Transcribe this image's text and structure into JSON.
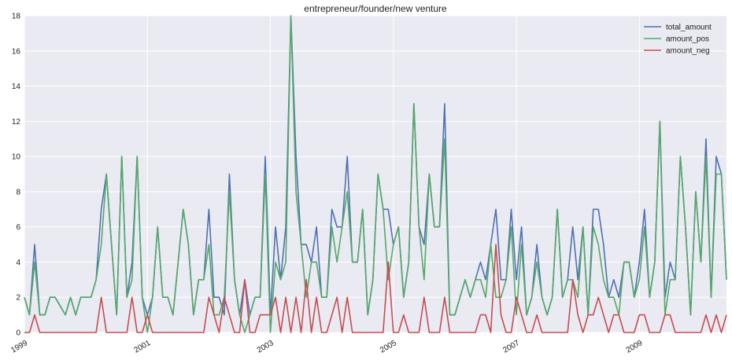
{
  "chart_data": {
    "type": "line",
    "title": "entrepreneur/founder/new venture",
    "xlabel": "",
    "ylabel": "",
    "x_start": "1999-01",
    "x_end": "2010-09",
    "x_ticks": [
      "1999",
      "2001",
      "2003",
      "2005",
      "2007",
      "2009"
    ],
    "ylim": [
      0,
      18
    ],
    "y_ticks": [
      "0",
      "2",
      "4",
      "6",
      "8",
      "10",
      "12",
      "14",
      "16",
      "18"
    ],
    "grid": true,
    "legend_position": "top-right",
    "series": [
      {
        "name": "total_amount",
        "color": "#4c72b0",
        "values": [
          2,
          1,
          5,
          1,
          1,
          2,
          2,
          1.5,
          1,
          2,
          1,
          2,
          2,
          2,
          3,
          7,
          9,
          5,
          1,
          10,
          2,
          4,
          10,
          2,
          1,
          2,
          6,
          2,
          2,
          1,
          4,
          7,
          5,
          1,
          3,
          3,
          7,
          2,
          2,
          1,
          9,
          3,
          1,
          3,
          1,
          2,
          2,
          10,
          1,
          6,
          3,
          6,
          18,
          10,
          5,
          5,
          4,
          6,
          2,
          2,
          7,
          6,
          6,
          10,
          4,
          4,
          7,
          1,
          3,
          9,
          7,
          7,
          5,
          6,
          2,
          4,
          13,
          6,
          5,
          9,
          6,
          6,
          13,
          1,
          1,
          2,
          3,
          2,
          3,
          4,
          3,
          5,
          7,
          3,
          3,
          7,
          3,
          6,
          1,
          2,
          5,
          2,
          1,
          2,
          7,
          2,
          3,
          6,
          3,
          6,
          1,
          7,
          7,
          5,
          2,
          3,
          2,
          4,
          4,
          2,
          4,
          7,
          2,
          4,
          12,
          2,
          4,
          3,
          10,
          6,
          1,
          8,
          4,
          11,
          2,
          10,
          9,
          3
        ]
      },
      {
        "name": "amount_pos",
        "color": "#55a868",
        "values": [
          2,
          1,
          4,
          1,
          1,
          2,
          2,
          1.5,
          1,
          2,
          1,
          2,
          2,
          2,
          3,
          5,
          9,
          5,
          1,
          10,
          2,
          3,
          10,
          2,
          0,
          2,
          6,
          2,
          2,
          1,
          4,
          7,
          5,
          1,
          3,
          3,
          5,
          1,
          1,
          2,
          8,
          3,
          1,
          0,
          1,
          2,
          2,
          9,
          0,
          4,
          3,
          4,
          18,
          8,
          5,
          2,
          4,
          4,
          2,
          2,
          6,
          4,
          6,
          8,
          4,
          4,
          7,
          1,
          3,
          9,
          7,
          3,
          5,
          6,
          2,
          4,
          13,
          6,
          3,
          9,
          6,
          6,
          11,
          1,
          1,
          2,
          3,
          2,
          3,
          3,
          2,
          5,
          2,
          2,
          3,
          6,
          1,
          5,
          1,
          2,
          4,
          2,
          1,
          2,
          7,
          2,
          3,
          3,
          2,
          6,
          1,
          6,
          5,
          3,
          2,
          2,
          1,
          4,
          4,
          2,
          3,
          6,
          2,
          4,
          12,
          1,
          3,
          3,
          10,
          6,
          1,
          8,
          4,
          10,
          2,
          9,
          9,
          3
        ]
      },
      {
        "name": "amount_neg",
        "color": "#c44e52",
        "values": [
          0,
          0,
          1,
          0,
          0,
          0,
          0,
          0,
          0,
          0,
          0,
          0,
          0,
          0,
          0,
          2,
          0,
          0,
          0,
          0,
          0,
          2,
          0,
          0,
          1,
          0,
          0,
          0,
          0,
          0,
          0,
          0,
          0,
          0,
          0,
          0,
          2,
          1,
          0,
          2,
          1,
          0,
          0,
          3,
          0,
          0,
          1,
          1,
          1,
          2,
          0,
          2,
          0,
          2,
          0,
          3,
          0,
          2,
          0,
          0,
          1,
          2,
          0,
          2,
          0,
          0,
          0,
          0,
          0,
          0,
          0,
          4,
          0,
          0,
          1,
          0,
          0,
          0,
          2,
          0,
          0,
          0,
          2,
          0,
          0,
          0,
          0,
          0,
          0,
          1,
          1,
          0,
          5,
          1,
          0,
          0,
          2,
          1,
          0,
          0,
          1,
          0,
          0,
          0,
          0,
          0,
          0,
          3,
          1,
          0,
          1,
          1,
          2,
          1,
          0,
          1,
          1,
          0,
          0,
          0,
          1,
          1,
          0,
          0,
          0,
          1,
          1,
          0,
          0,
          0,
          0,
          0,
          0,
          1,
          0,
          1,
          0,
          1
        ]
      }
    ]
  }
}
